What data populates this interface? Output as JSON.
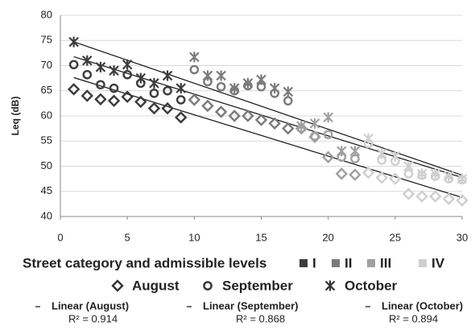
{
  "chart_data": {
    "type": "scatter",
    "y_label": "Leq (dB)",
    "xlim": [
      0,
      30
    ],
    "xticks": [
      0,
      5,
      10,
      15,
      20,
      25,
      30
    ],
    "ylim": [
      40,
      80
    ],
    "yticks": [
      40,
      45,
      50,
      55,
      60,
      65,
      70,
      75,
      80
    ],
    "grid": true,
    "x": [
      1,
      2,
      3,
      4,
      5,
      6,
      7,
      8,
      9,
      10,
      11,
      12,
      13,
      14,
      15,
      16,
      17,
      18,
      19,
      20,
      21,
      22,
      23,
      24,
      25,
      26,
      27,
      28,
      29,
      30
    ],
    "street_category_title": "Street category and admissible levels",
    "street_categories": [
      {
        "name": "I",
        "color": "#3c3c3c"
      },
      {
        "name": "II",
        "color": "#7a7a7a"
      },
      {
        "name": "III",
        "color": "#a0a0a0"
      },
      {
        "name": "IV",
        "color": "#cfcfcf"
      }
    ],
    "x_category": [
      "I",
      "I",
      "I",
      "I",
      "I",
      "I",
      "I",
      "I",
      "I",
      "II",
      "II",
      "II",
      "II",
      "II",
      "II",
      "II",
      "II",
      "III",
      "III",
      "III",
      "III",
      "III",
      "IV",
      "IV",
      "IV",
      "IV",
      "IV",
      "IV",
      "IV",
      "IV"
    ],
    "series": [
      {
        "name": "August",
        "marker": "diamond",
        "values": [
          65.3,
          64,
          63.3,
          63,
          63.8,
          62.8,
          61.5,
          61.5,
          59.7,
          63.2,
          62,
          60.8,
          60,
          60,
          59.2,
          58.5,
          57.5,
          57.5,
          55.8,
          51.8,
          48.5,
          48.3,
          48.7,
          47.7,
          47.5,
          44.5,
          44,
          44,
          43.5,
          43.2
        ]
      },
      {
        "name": "September",
        "marker": "circle",
        "values": [
          70.2,
          68.2,
          66.2,
          65.5,
          68.2,
          66.5,
          64.5,
          65,
          63.2,
          69.2,
          66.8,
          65.8,
          65,
          66,
          65.8,
          64.5,
          63,
          57.5,
          56,
          56.3,
          51.8,
          51.5,
          54.5,
          51.2,
          51,
          48.5,
          48.2,
          48,
          47.5,
          47.3
        ]
      },
      {
        "name": "October",
        "marker": "star",
        "values": [
          74.7,
          71,
          69.7,
          69,
          70.2,
          67.5,
          66.5,
          68,
          65.5,
          71.7,
          68,
          68,
          65.5,
          66.5,
          67.2,
          65.5,
          64.8,
          58,
          58.5,
          59.7,
          53,
          53,
          55.5,
          52.5,
          52,
          50,
          48.5,
          48.5,
          48,
          47.5
        ]
      }
    ],
    "trendlines": [
      {
        "name": "Linear (August)",
        "r2_label": "R² = 0.914"
      },
      {
        "name": "Linear (September)",
        "r2_label": "R² = 0.868"
      },
      {
        "name": "Linear (October)",
        "r2_label": "R² = 0.894"
      }
    ]
  }
}
